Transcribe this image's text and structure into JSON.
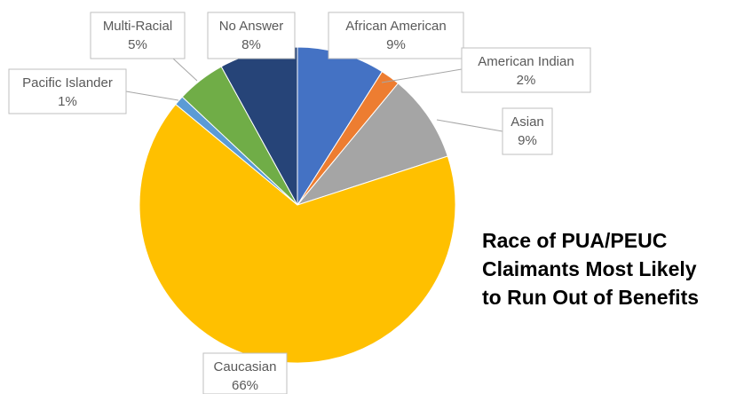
{
  "chart_data": {
    "type": "pie",
    "title_lines": [
      "Race of PUA/PEUC",
      "Claimants Most Likely",
      "to Run Out of Benefits"
    ],
    "slices": [
      {
        "label": "African American",
        "value": 9,
        "value_label": "9%",
        "color": "#4472c4"
      },
      {
        "label": "American Indian",
        "value": 2,
        "value_label": "2%",
        "color": "#ed7d31"
      },
      {
        "label": "Asian",
        "value": 9,
        "value_label": "9%",
        "color": "#a5a5a5"
      },
      {
        "label": "Caucasian",
        "value": 66,
        "value_label": "66%",
        "color": "#ffc000"
      },
      {
        "label": "Pacific Islander",
        "value": 1,
        "value_label": "1%",
        "color": "#5b9bd5"
      },
      {
        "label": "Multi-Racial",
        "value": 5,
        "value_label": "5%",
        "color": "#70ad47"
      },
      {
        "label": "No Answer",
        "value": 8,
        "value_label": "8%",
        "color": "#264478"
      }
    ]
  }
}
